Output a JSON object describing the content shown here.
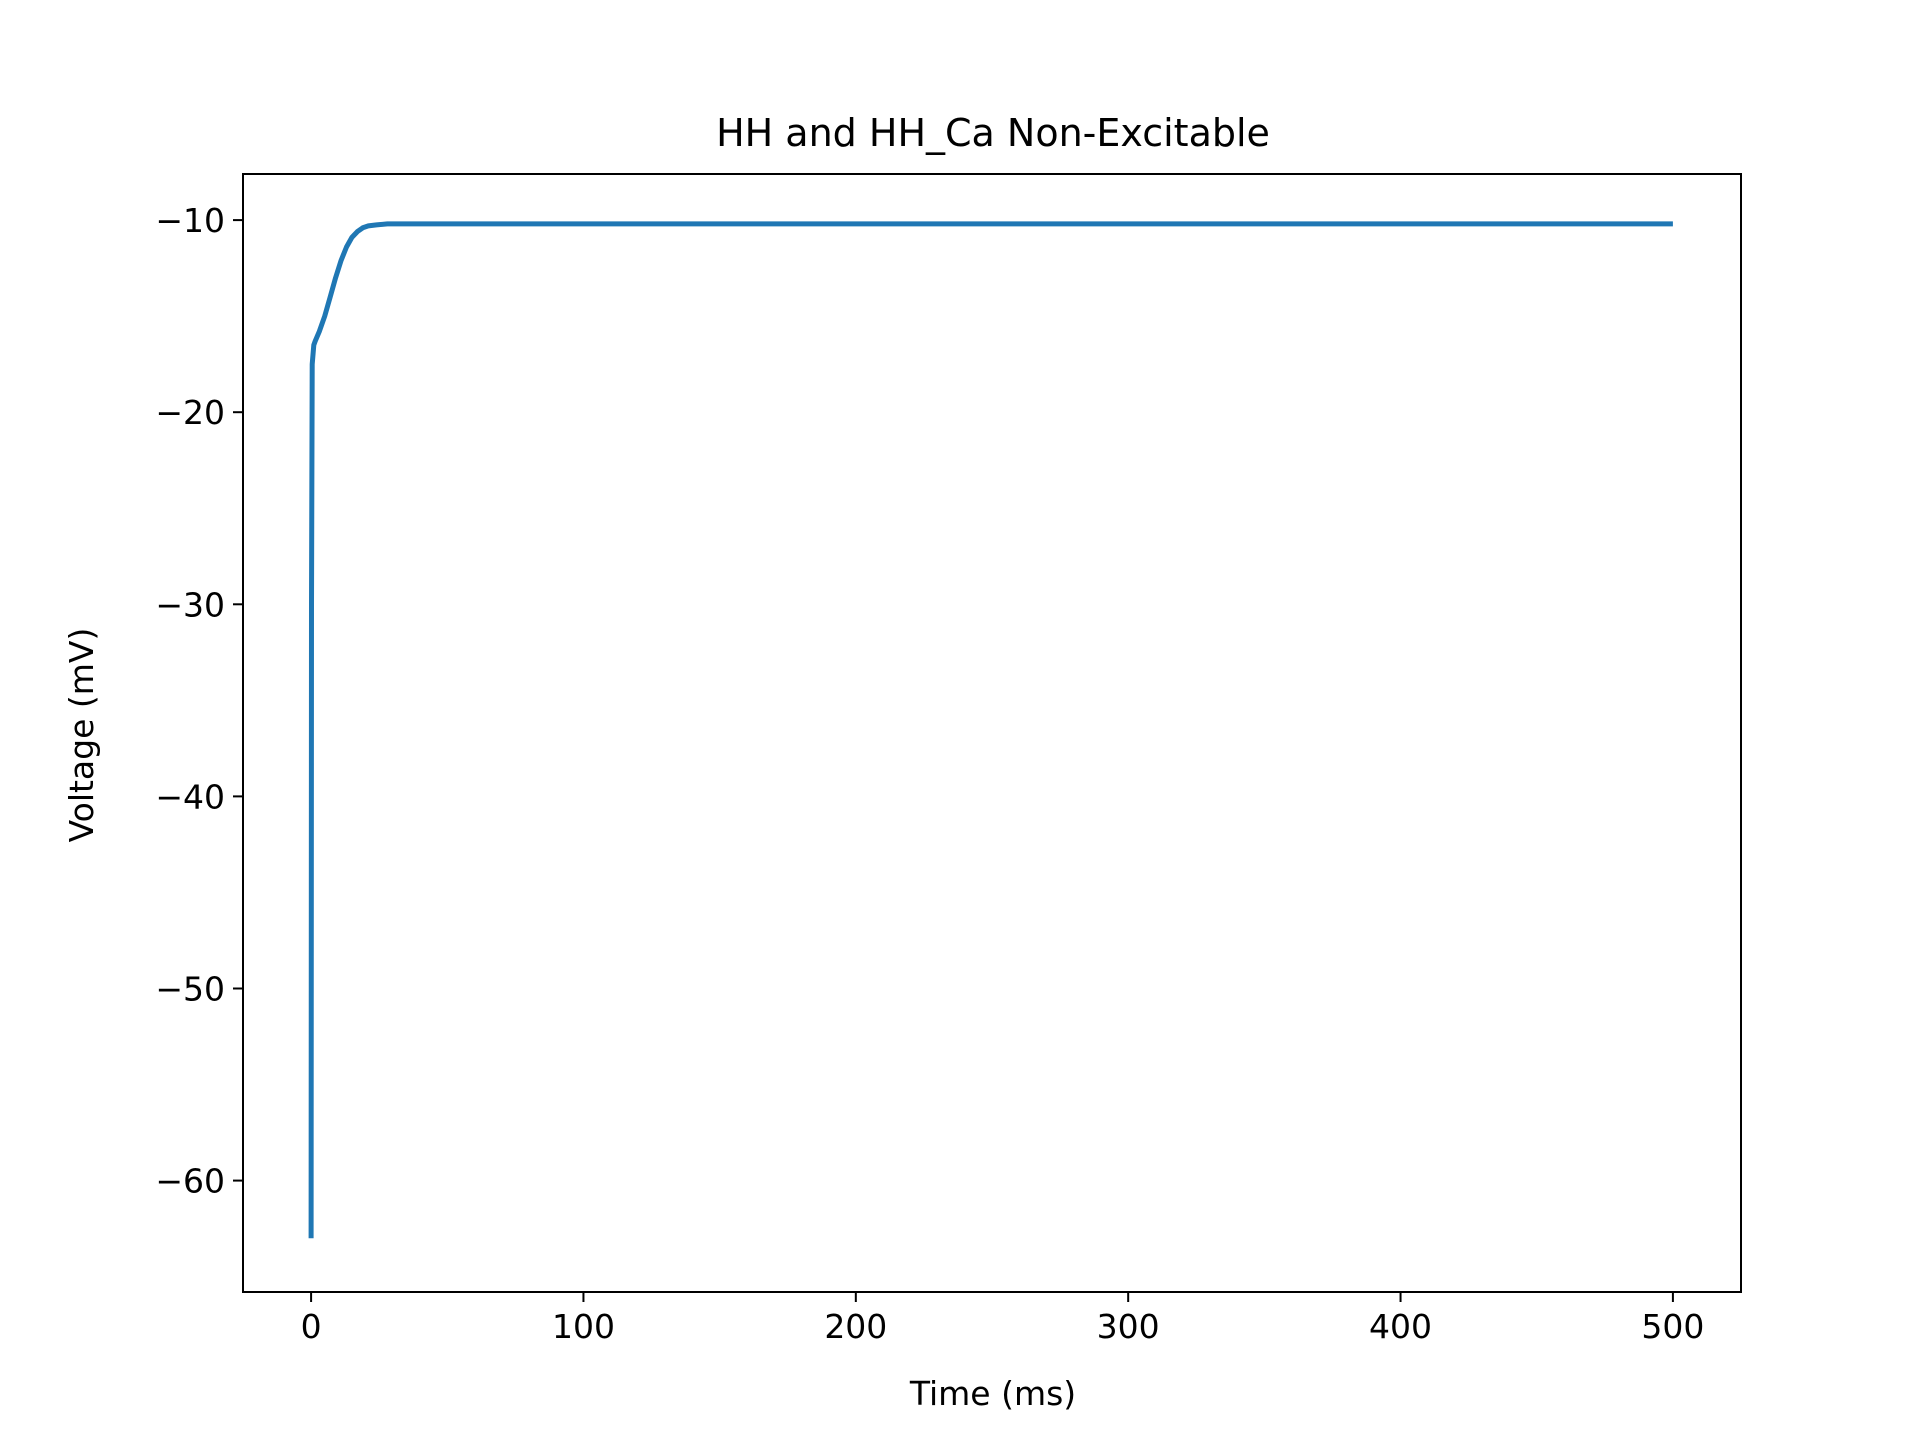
{
  "chart_data": {
    "type": "line",
    "title": "HH and HH_Ca Non-Excitable",
    "xlabel": "Time (ms)",
    "ylabel": "Voltage (mV)",
    "xlim": [
      -25,
      525
    ],
    "ylim": [
      -65.8,
      -7.6
    ],
    "xticks": [
      0,
      100,
      200,
      300,
      400,
      500
    ],
    "yticks": [
      -60,
      -50,
      -40,
      -30,
      -20,
      -10
    ],
    "xtick_labels": [
      "0",
      "100",
      "200",
      "300",
      "400",
      "500"
    ],
    "ytick_labels": [
      "−60",
      "−50",
      "−40",
      "−30",
      "−20",
      "−10"
    ],
    "grid": false,
    "series": [
      {
        "color": "#1f77b4",
        "x": [
          0,
          0.15,
          0.4,
          1,
          1.5,
          3,
          5,
          7,
          9,
          11,
          13,
          15,
          17,
          19,
          21,
          24,
          28,
          35,
          50,
          100,
          200,
          300,
          400,
          500
        ],
        "y": [
          -63,
          -30,
          -17.5,
          -16.5,
          -16.3,
          -15.8,
          -15.0,
          -14.0,
          -13.0,
          -12.1,
          -11.4,
          -10.9,
          -10.6,
          -10.4,
          -10.3,
          -10.25,
          -10.2,
          -10.2,
          -10.2,
          -10.2,
          -10.2,
          -10.2,
          -10.2,
          -10.2
        ]
      }
    ]
  }
}
